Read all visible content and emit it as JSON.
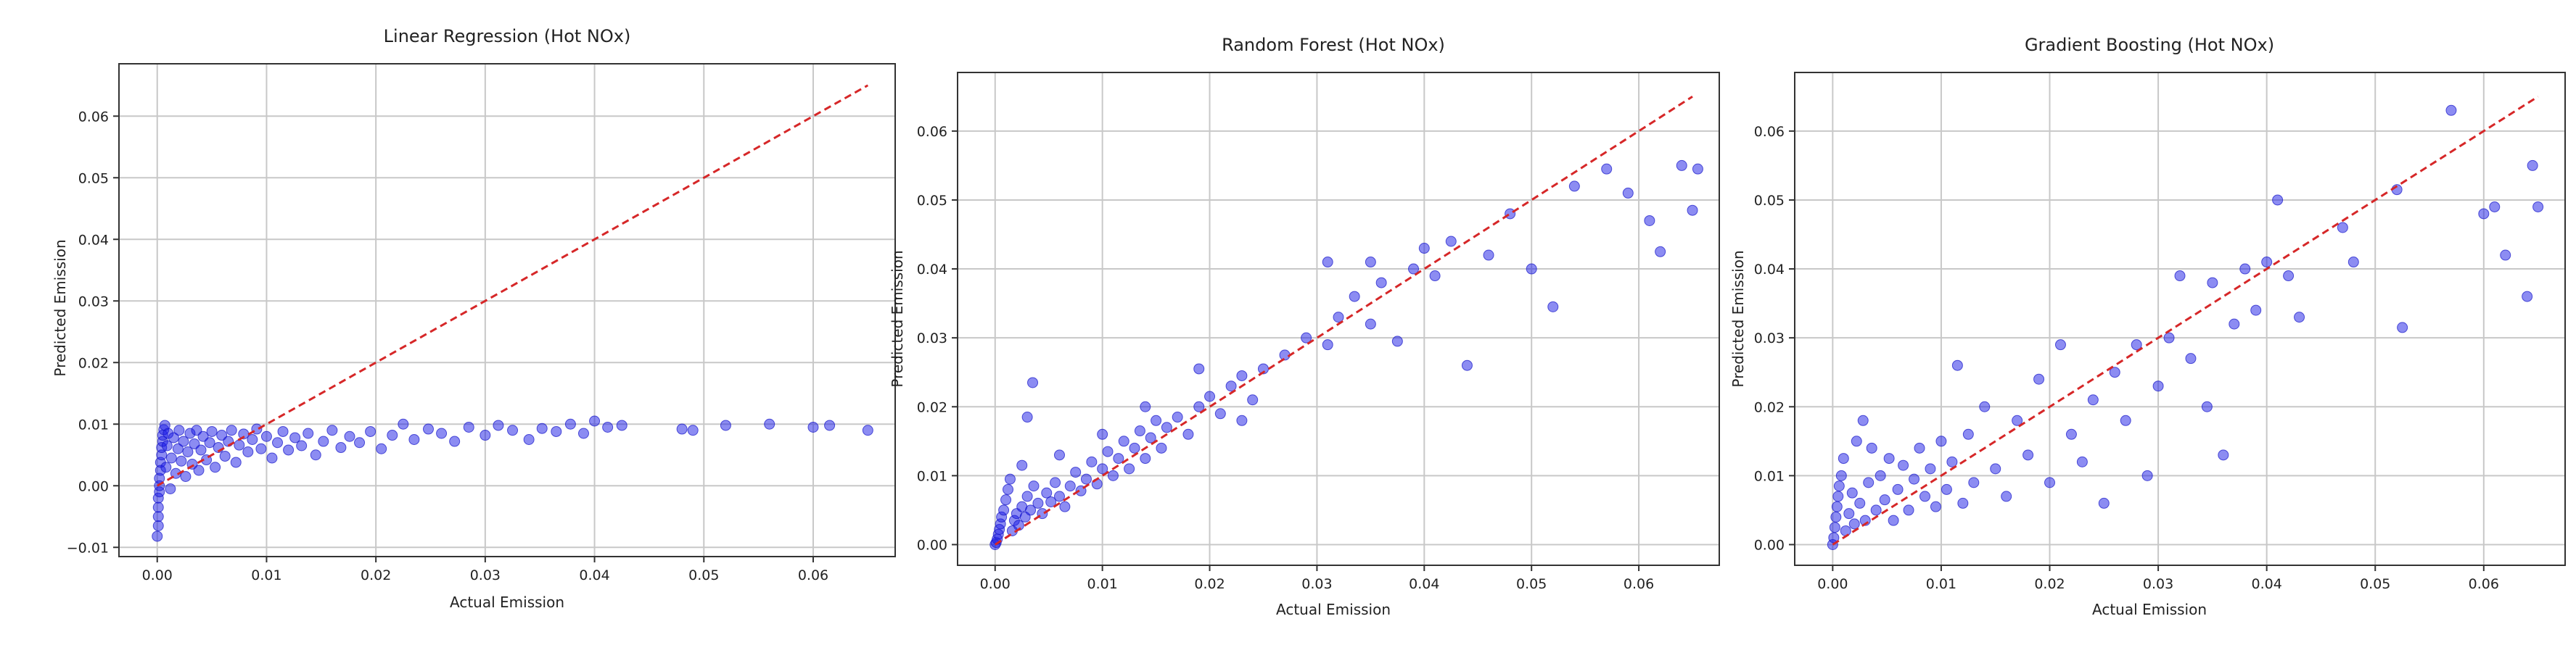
{
  "colors": {
    "points": "#1a1ae6",
    "identity_line": "#d62728",
    "grid": "#c8c8c8"
  },
  "chart_data": [
    {
      "type": "scatter",
      "title": "Linear Regression (Hot NOx)",
      "xlabel": "Actual Emission",
      "ylabel": "Predicted Emission",
      "xlim": [
        -0.0035,
        0.0675
      ],
      "ylim": [
        -0.0115,
        0.0685
      ],
      "xticks": [
        0.0,
        0.01,
        0.02,
        0.03,
        0.04,
        0.05,
        0.06
      ],
      "xtick_labels": [
        "0.00",
        "0.01",
        "0.02",
        "0.03",
        "0.04",
        "0.05",
        "0.06"
      ],
      "yticks": [
        -0.01,
        0.0,
        0.01,
        0.02,
        0.03,
        0.04,
        0.05,
        0.06
      ],
      "ytick_labels": [
        "−0.01",
        "0.00",
        "0.01",
        "0.02",
        "0.03",
        "0.04",
        "0.05",
        "0.06"
      ],
      "grid": true,
      "reference_line": {
        "from": [
          0,
          0
        ],
        "to": [
          0.065,
          0.065
        ]
      },
      "points": [
        [
          0.0,
          -0.0082
        ],
        [
          0.0001,
          -0.0065
        ],
        [
          0.0001,
          -0.005
        ],
        [
          0.0001,
          -0.0035
        ],
        [
          0.0001,
          -0.002
        ],
        [
          0.0002,
          -0.001
        ],
        [
          0.0002,
          0.0
        ],
        [
          0.0002,
          0.0012
        ],
        [
          0.0003,
          0.0025
        ],
        [
          0.0003,
          0.0038
        ],
        [
          0.0004,
          0.005
        ],
        [
          0.0004,
          0.0062
        ],
        [
          0.0005,
          0.0072
        ],
        [
          0.0005,
          0.0082
        ],
        [
          0.0006,
          0.0091
        ],
        [
          0.0007,
          0.0098
        ],
        [
          0.0008,
          0.003
        ],
        [
          0.0009,
          0.0065
        ],
        [
          0.001,
          0.0085
        ],
        [
          0.0012,
          -0.0005
        ],
        [
          0.0013,
          0.0045
        ],
        [
          0.0015,
          0.0078
        ],
        [
          0.0017,
          0.002
        ],
        [
          0.0019,
          0.006
        ],
        [
          0.002,
          0.009
        ],
        [
          0.0022,
          0.004
        ],
        [
          0.0024,
          0.0072
        ],
        [
          0.0026,
          0.0015
        ],
        [
          0.0028,
          0.0055
        ],
        [
          0.003,
          0.0085
        ],
        [
          0.0032,
          0.0035
        ],
        [
          0.0034,
          0.0068
        ],
        [
          0.0036,
          0.009
        ],
        [
          0.0038,
          0.0025
        ],
        [
          0.004,
          0.0058
        ],
        [
          0.0042,
          0.008
        ],
        [
          0.0045,
          0.0042
        ],
        [
          0.0048,
          0.007
        ],
        [
          0.005,
          0.0088
        ],
        [
          0.0053,
          0.003
        ],
        [
          0.0056,
          0.0062
        ],
        [
          0.0059,
          0.0082
        ],
        [
          0.0062,
          0.0048
        ],
        [
          0.0065,
          0.0072
        ],
        [
          0.0068,
          0.009
        ],
        [
          0.0072,
          0.0038
        ],
        [
          0.0075,
          0.0066
        ],
        [
          0.0079,
          0.0084
        ],
        [
          0.0083,
          0.0055
        ],
        [
          0.0087,
          0.0075
        ],
        [
          0.0091,
          0.0092
        ],
        [
          0.0095,
          0.006
        ],
        [
          0.01,
          0.008
        ],
        [
          0.0105,
          0.0045
        ],
        [
          0.011,
          0.007
        ],
        [
          0.0115,
          0.0088
        ],
        [
          0.012,
          0.0058
        ],
        [
          0.0126,
          0.0078
        ],
        [
          0.0132,
          0.0065
        ],
        [
          0.0138,
          0.0085
        ],
        [
          0.0145,
          0.005
        ],
        [
          0.0152,
          0.0072
        ],
        [
          0.016,
          0.009
        ],
        [
          0.0168,
          0.0062
        ],
        [
          0.0176,
          0.008
        ],
        [
          0.0185,
          0.007
        ],
        [
          0.0195,
          0.0088
        ],
        [
          0.0205,
          0.006
        ],
        [
          0.0215,
          0.0082
        ],
        [
          0.0225,
          0.01
        ],
        [
          0.0235,
          0.0075
        ],
        [
          0.0248,
          0.0092
        ],
        [
          0.026,
          0.0085
        ],
        [
          0.0272,
          0.0072
        ],
        [
          0.0285,
          0.0095
        ],
        [
          0.03,
          0.0082
        ],
        [
          0.0312,
          0.0098
        ],
        [
          0.0325,
          0.009
        ],
        [
          0.034,
          0.0075
        ],
        [
          0.0352,
          0.0093
        ],
        [
          0.0365,
          0.0088
        ],
        [
          0.0378,
          0.01
        ],
        [
          0.039,
          0.0085
        ],
        [
          0.04,
          0.0105
        ],
        [
          0.0412,
          0.0095
        ],
        [
          0.0425,
          0.0098
        ],
        [
          0.048,
          0.0092
        ],
        [
          0.049,
          0.009
        ],
        [
          0.052,
          0.0098
        ],
        [
          0.056,
          0.01
        ],
        [
          0.06,
          0.0095
        ],
        [
          0.0615,
          0.0098
        ],
        [
          0.065,
          0.009
        ]
      ]
    },
    {
      "type": "scatter",
      "title": "Random Forest (Hot NOx)",
      "xlabel": "Actual Emission",
      "ylabel": "Predicted Emission",
      "xlim": [
        -0.0035,
        0.0675
      ],
      "ylim": [
        -0.003,
        0.0685
      ],
      "xticks": [
        0.0,
        0.01,
        0.02,
        0.03,
        0.04,
        0.05,
        0.06
      ],
      "xtick_labels": [
        "0.00",
        "0.01",
        "0.02",
        "0.03",
        "0.04",
        "0.05",
        "0.06"
      ],
      "yticks": [
        0.0,
        0.01,
        0.02,
        0.03,
        0.04,
        0.05,
        0.06
      ],
      "ytick_labels": [
        "0.00",
        "0.01",
        "0.02",
        "0.03",
        "0.04",
        "0.05",
        "0.06"
      ],
      "grid": true,
      "reference_line": {
        "from": [
          0,
          0
        ],
        "to": [
          0.065,
          0.065
        ]
      },
      "points": [
        [
          0.0,
          0.0
        ],
        [
          0.0001,
          0.0003
        ],
        [
          0.0002,
          0.0008
        ],
        [
          0.0003,
          0.0015
        ],
        [
          0.0004,
          0.0022
        ],
        [
          0.0005,
          0.003
        ],
        [
          0.0006,
          0.004
        ],
        [
          0.0008,
          0.005
        ],
        [
          0.001,
          0.0065
        ],
        [
          0.0012,
          0.008
        ],
        [
          0.0014,
          0.0095
        ],
        [
          0.0016,
          0.002
        ],
        [
          0.0018,
          0.0035
        ],
        [
          0.002,
          0.0045
        ],
        [
          0.0022,
          0.0028
        ],
        [
          0.0025,
          0.0055
        ],
        [
          0.0028,
          0.004
        ],
        [
          0.003,
          0.007
        ],
        [
          0.0033,
          0.005
        ],
        [
          0.0036,
          0.0085
        ],
        [
          0.004,
          0.006
        ],
        [
          0.0044,
          0.0045
        ],
        [
          0.0048,
          0.0075
        ],
        [
          0.0052,
          0.0062
        ],
        [
          0.0056,
          0.009
        ],
        [
          0.006,
          0.007
        ],
        [
          0.0065,
          0.0055
        ],
        [
          0.007,
          0.0085
        ],
        [
          0.0075,
          0.0105
        ],
        [
          0.008,
          0.0078
        ],
        [
          0.0085,
          0.0095
        ],
        [
          0.009,
          0.012
        ],
        [
          0.0095,
          0.0088
        ],
        [
          0.01,
          0.011
        ],
        [
          0.0105,
          0.0135
        ],
        [
          0.011,
          0.01
        ],
        [
          0.0115,
          0.0125
        ],
        [
          0.012,
          0.015
        ],
        [
          0.0125,
          0.011
        ],
        [
          0.013,
          0.014
        ],
        [
          0.0135,
          0.0165
        ],
        [
          0.014,
          0.0125
        ],
        [
          0.0145,
          0.0155
        ],
        [
          0.015,
          0.018
        ],
        [
          0.0155,
          0.014
        ],
        [
          0.016,
          0.017
        ],
        [
          0.017,
          0.0185
        ],
        [
          0.018,
          0.016
        ],
        [
          0.019,
          0.02
        ],
        [
          0.02,
          0.0215
        ],
        [
          0.021,
          0.019
        ],
        [
          0.022,
          0.023
        ],
        [
          0.023,
          0.0245
        ],
        [
          0.024,
          0.021
        ],
        [
          0.025,
          0.0255
        ],
        [
          0.027,
          0.0275
        ],
        [
          0.029,
          0.03
        ],
        [
          0.031,
          0.029
        ],
        [
          0.032,
          0.033
        ],
        [
          0.0335,
          0.036
        ],
        [
          0.035,
          0.032
        ],
        [
          0.036,
          0.038
        ],
        [
          0.0375,
          0.0295
        ],
        [
          0.039,
          0.04
        ],
        [
          0.04,
          0.043
        ],
        [
          0.041,
          0.039
        ],
        [
          0.0425,
          0.044
        ],
        [
          0.044,
          0.026
        ],
        [
          0.046,
          0.042
        ],
        [
          0.048,
          0.048
        ],
        [
          0.05,
          0.04
        ],
        [
          0.052,
          0.0345
        ],
        [
          0.054,
          0.052
        ],
        [
          0.057,
          0.0545
        ],
        [
          0.059,
          0.051
        ],
        [
          0.061,
          0.047
        ],
        [
          0.062,
          0.0425
        ],
        [
          0.064,
          0.055
        ],
        [
          0.065,
          0.0485
        ],
        [
          0.0655,
          0.0545
        ],
        [
          0.0025,
          0.0115
        ],
        [
          0.003,
          0.0185
        ],
        [
          0.0035,
          0.0235
        ],
        [
          0.006,
          0.013
        ],
        [
          0.01,
          0.016
        ],
        [
          0.014,
          0.02
        ],
        [
          0.019,
          0.0255
        ],
        [
          0.023,
          0.018
        ],
        [
          0.031,
          0.041
        ],
        [
          0.035,
          0.041
        ]
      ]
    },
    {
      "type": "scatter",
      "title": "Gradient Boosting (Hot NOx)",
      "xlabel": "Actual Emission",
      "ylabel": "Predicted Emission",
      "xlim": [
        -0.0035,
        0.0675
      ],
      "ylim": [
        -0.003,
        0.0685
      ],
      "xticks": [
        0.0,
        0.01,
        0.02,
        0.03,
        0.04,
        0.05,
        0.06
      ],
      "xtick_labels": [
        "0.00",
        "0.01",
        "0.02",
        "0.03",
        "0.04",
        "0.05",
        "0.06"
      ],
      "yticks": [
        0.0,
        0.01,
        0.02,
        0.03,
        0.04,
        0.05,
        0.06
      ],
      "ytick_labels": [
        "0.00",
        "0.01",
        "0.02",
        "0.03",
        "0.04",
        "0.05",
        "0.06"
      ],
      "grid": true,
      "reference_line": {
        "from": [
          0,
          0
        ],
        "to": [
          0.065,
          0.065
        ]
      },
      "points": [
        [
          0.0,
          0.0
        ],
        [
          0.0001,
          0.001
        ],
        [
          0.0002,
          0.0025
        ],
        [
          0.0003,
          0.004
        ],
        [
          0.0004,
          0.0055
        ],
        [
          0.0005,
          0.007
        ],
        [
          0.0006,
          0.0085
        ],
        [
          0.0008,
          0.01
        ],
        [
          0.001,
          0.0125
        ],
        [
          0.0012,
          0.002
        ],
        [
          0.0015,
          0.0045
        ],
        [
          0.0018,
          0.0075
        ],
        [
          0.002,
          0.003
        ],
        [
          0.0022,
          0.015
        ],
        [
          0.0025,
          0.006
        ],
        [
          0.0028,
          0.018
        ],
        [
          0.003,
          0.0035
        ],
        [
          0.0033,
          0.009
        ],
        [
          0.0036,
          0.014
        ],
        [
          0.004,
          0.005
        ],
        [
          0.0044,
          0.01
        ],
        [
          0.0048,
          0.0065
        ],
        [
          0.0052,
          0.0125
        ],
        [
          0.0056,
          0.0035
        ],
        [
          0.006,
          0.008
        ],
        [
          0.0065,
          0.0115
        ],
        [
          0.007,
          0.005
        ],
        [
          0.0075,
          0.0095
        ],
        [
          0.008,
          0.014
        ],
        [
          0.0085,
          0.007
        ],
        [
          0.009,
          0.011
        ],
        [
          0.0095,
          0.0055
        ],
        [
          0.01,
          0.015
        ],
        [
          0.0105,
          0.008
        ],
        [
          0.011,
          0.012
        ],
        [
          0.0115,
          0.026
        ],
        [
          0.012,
          0.006
        ],
        [
          0.0125,
          0.016
        ],
        [
          0.013,
          0.009
        ],
        [
          0.014,
          0.02
        ],
        [
          0.015,
          0.011
        ],
        [
          0.016,
          0.007
        ],
        [
          0.017,
          0.018
        ],
        [
          0.018,
          0.013
        ],
        [
          0.019,
          0.024
        ],
        [
          0.02,
          0.009
        ],
        [
          0.021,
          0.029
        ],
        [
          0.022,
          0.016
        ],
        [
          0.023,
          0.012
        ],
        [
          0.024,
          0.021
        ],
        [
          0.025,
          0.006
        ],
        [
          0.026,
          0.025
        ],
        [
          0.027,
          0.018
        ],
        [
          0.028,
          0.029
        ],
        [
          0.029,
          0.01
        ],
        [
          0.03,
          0.023
        ],
        [
          0.031,
          0.03
        ],
        [
          0.032,
          0.039
        ],
        [
          0.033,
          0.027
        ],
        [
          0.0345,
          0.02
        ],
        [
          0.035,
          0.038
        ],
        [
          0.036,
          0.013
        ],
        [
          0.037,
          0.032
        ],
        [
          0.038,
          0.04
        ],
        [
          0.039,
          0.034
        ],
        [
          0.04,
          0.041
        ],
        [
          0.041,
          0.05
        ],
        [
          0.042,
          0.039
        ],
        [
          0.043,
          0.033
        ],
        [
          0.047,
          0.046
        ],
        [
          0.048,
          0.041
        ],
        [
          0.052,
          0.0515
        ],
        [
          0.0525,
          0.0315
        ],
        [
          0.057,
          0.063
        ],
        [
          0.06,
          0.048
        ],
        [
          0.061,
          0.049
        ],
        [
          0.062,
          0.042
        ],
        [
          0.064,
          0.036
        ],
        [
          0.0645,
          0.055
        ],
        [
          0.065,
          0.049
        ]
      ]
    }
  ]
}
